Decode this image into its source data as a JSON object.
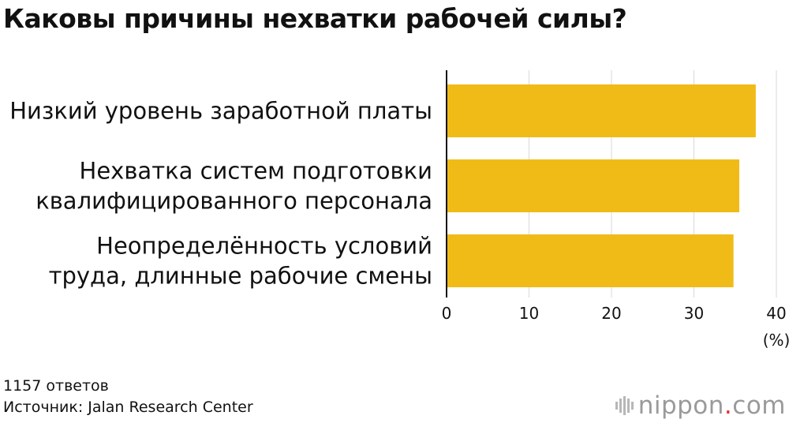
{
  "title": "Каковы причины нехватки рабочей силы?",
  "chart_data": {
    "type": "bar",
    "orientation": "horizontal",
    "categories": [
      [
        "Низкий уровень заработной платы"
      ],
      [
        "Нехватка систем подготовки",
        "квалифицированного персонала"
      ],
      [
        "Неопределённость условий",
        "труда, длинные рабочие смены"
      ]
    ],
    "values": [
      37.5,
      35.5,
      34.8
    ],
    "xticks": [
      "0",
      "10",
      "20",
      "30",
      "40"
    ],
    "xlim": [
      0,
      40
    ],
    "unit": "(%)",
    "grid": true,
    "colors": {
      "bar": "#f0bb17",
      "grid": "#d9d9d9",
      "axis": "#111111"
    }
  },
  "notes": {
    "responses": "1157 ответов",
    "source": "Источник: Jalan Research Center"
  },
  "logo": {
    "name": "nippon",
    "dot": ".",
    "suffix": "com"
  }
}
